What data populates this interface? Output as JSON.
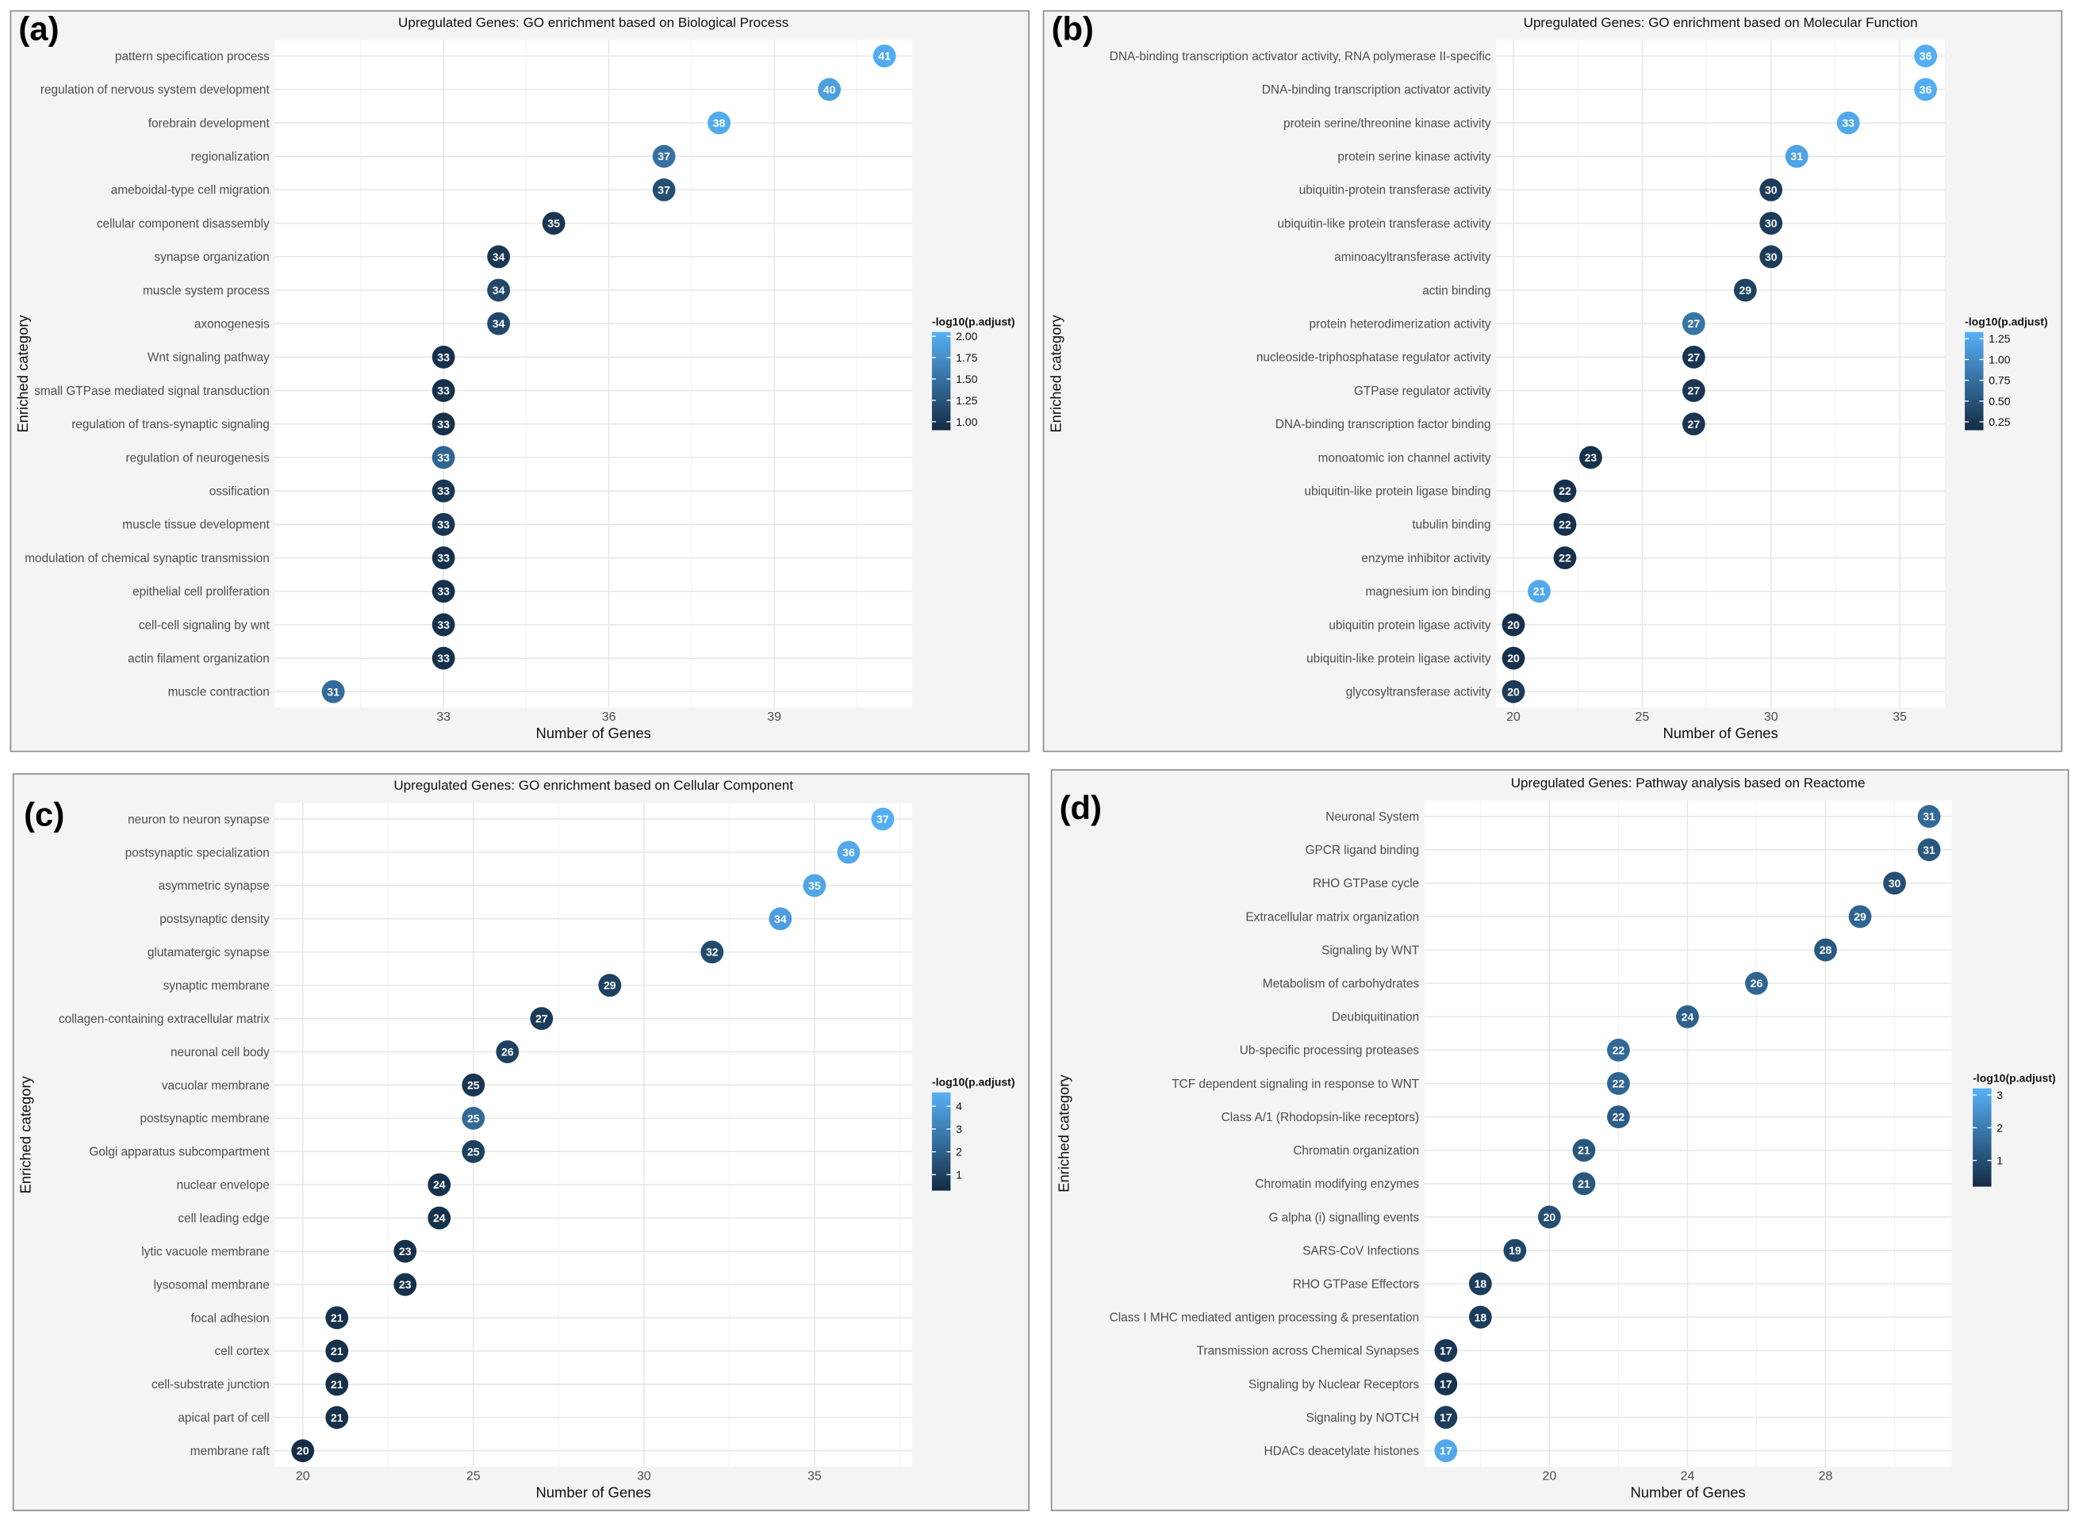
{
  "colors": {
    "low": "#132B43",
    "high": "#56B1F7",
    "grid": "#e6e6e6",
    "panel_bg": "#f4f4f4",
    "border": "#8c8c8c"
  },
  "chart_data": [
    {
      "type": "scatter",
      "panel_label": "(a)",
      "title": "Upregulated Genes: GO enrichment based on Biological Process",
      "xlabel": "Number of Genes",
      "ylabel": "Enriched category",
      "xlim": [
        29.94,
        41.5
      ],
      "xticks": [
        33,
        36,
        39
      ],
      "grid": true,
      "legend": {
        "title": "-log10(p.adjust)",
        "placement": "right",
        "range": [
          0.9,
          2.05
        ],
        "ticks": [
          "1.00",
          "1.25",
          "1.50",
          "1.75",
          "2.00"
        ]
      },
      "categories": [
        "pattern specification process",
        "regulation of nervous system development",
        "forebrain development",
        "regionalization",
        "ameboidal-type cell migration",
        "cellular component disassembly",
        "synapse organization",
        "muscle system process",
        "axonogenesis",
        "Wnt signaling pathway",
        "small GTPase mediated signal transduction",
        "regulation of trans-synaptic signaling",
        "regulation of neurogenesis",
        "ossification",
        "muscle tissue development",
        "modulation of chemical synaptic transmission",
        "epithelial cell proliferation",
        "cell-cell signaling by wnt",
        "actin filament organization",
        "muscle contraction"
      ],
      "values": [
        41,
        40,
        38,
        37,
        37,
        35,
        34,
        34,
        34,
        33,
        33,
        33,
        33,
        33,
        33,
        33,
        33,
        33,
        33,
        31
      ],
      "color_values": [
        2.0,
        1.9,
        2.0,
        1.5,
        1.2,
        1.0,
        1.0,
        1.15,
        1.15,
        0.95,
        0.95,
        0.95,
        1.4,
        1.0,
        1.0,
        0.95,
        0.95,
        0.95,
        0.95,
        1.45
      ]
    },
    {
      "type": "scatter",
      "panel_label": "(b)",
      "title": "Upregulated Genes: GO enrichment based on Molecular Function",
      "xlabel": "Number of Genes",
      "ylabel": "Enriched category",
      "xlim": [
        19.33,
        36.75
      ],
      "xticks": [
        20,
        25,
        30,
        35
      ],
      "grid": true,
      "legend": {
        "title": "-log10(p.adjust)",
        "placement": "right",
        "range": [
          0.15,
          1.33
        ],
        "ticks": [
          "0.25",
          "0.50",
          "0.75",
          "1.00",
          "1.25"
        ]
      },
      "categories": [
        "DNA-binding transcription activator activity, RNA polymerase II-specific",
        "DNA-binding transcription activator activity",
        "protein serine/threonine kinase activity",
        "protein serine kinase activity",
        "ubiquitin-protein transferase activity",
        "ubiquitin-like protein transferase activity",
        "aminoacyltransferase activity",
        "actin binding",
        "protein heterodimerization activity",
        "nucleoside-triphosphatase regulator activity",
        "GTPase regulator activity",
        "DNA-binding transcription factor binding",
        "monoatomic ion channel activity",
        "ubiquitin-like protein ligase binding",
        "tubulin binding",
        "enzyme inhibitor activity",
        "magnesium ion binding",
        "ubiquitin protein ligase activity",
        "ubiquitin-like protein ligase activity",
        "glycosyltransferase activity"
      ],
      "values": [
        36,
        36,
        33,
        31,
        30,
        30,
        30,
        29,
        27,
        27,
        27,
        27,
        23,
        22,
        22,
        22,
        21,
        20,
        20,
        20
      ],
      "color_values": [
        1.3,
        1.3,
        1.25,
        1.2,
        0.3,
        0.3,
        0.3,
        0.35,
        0.8,
        0.25,
        0.25,
        0.25,
        0.2,
        0.2,
        0.2,
        0.2,
        1.25,
        0.2,
        0.2,
        0.3
      ]
    },
    {
      "type": "scatter",
      "panel_label": "(c)",
      "title": "Upregulated Genes: GO enrichment based on Cellular Component",
      "xlabel": "Number of Genes",
      "ylabel": "Enriched category",
      "xlim": [
        19.18,
        37.86
      ],
      "xticks": [
        20,
        25,
        30,
        35
      ],
      "grid": true,
      "legend": {
        "title": "-log10(p.adjust)",
        "placement": "right",
        "range": [
          0.3,
          4.6
        ],
        "ticks": [
          "1",
          "2",
          "3",
          "4"
        ]
      },
      "categories": [
        "neuron to neuron synapse",
        "postsynaptic specialization",
        "asymmetric synapse",
        "postsynaptic density",
        "glutamatergic synapse",
        "synaptic membrane",
        "collagen-containing extracellular matrix",
        "neuronal cell body",
        "vacuolar membrane",
        "postsynaptic membrane",
        "Golgi apparatus subcompartment",
        "nuclear envelope",
        "cell leading edge",
        "lytic vacuole membrane",
        "lysosomal membrane",
        "focal adhesion",
        "cell cortex",
        "cell-substrate junction",
        "apical part of cell",
        "membrane raft"
      ],
      "values": [
        37,
        36,
        35,
        34,
        32,
        29,
        27,
        26,
        25,
        25,
        25,
        24,
        24,
        23,
        23,
        21,
        21,
        21,
        21,
        20
      ],
      "color_values": [
        4.5,
        4.3,
        4.2,
        4.0,
        1.3,
        1.0,
        0.8,
        1.0,
        0.6,
        2.3,
        1.0,
        0.5,
        0.5,
        0.5,
        0.5,
        0.5,
        0.5,
        0.5,
        0.5,
        0.4
      ]
    },
    {
      "type": "scatter",
      "panel_label": "(d)",
      "title": "Upregulated Genes: Pathway analysis based on Reactome",
      "xlabel": "Number of Genes",
      "ylabel": "Enriched category",
      "xlim": [
        16.38,
        31.65
      ],
      "xticks": [
        20,
        24,
        28
      ],
      "grid": true,
      "legend": {
        "title": "-log10(p.adjust)",
        "placement": "right",
        "range": [
          0.2,
          3.2
        ],
        "ticks": [
          "1",
          "2",
          "3"
        ]
      },
      "categories": [
        "Neuronal System",
        "GPCR ligand binding",
        "RHO GTPase cycle",
        "Extracellular matrix organization",
        "Signaling by WNT",
        "Metabolism of carbohydrates",
        "Deubiquitination",
        "Ub-specific processing proteases",
        "TCF dependent signaling in response to WNT",
        "Class A/1 (Rhodopsin-like receptors)",
        "Chromatin organization",
        "Chromatin modifying enzymes",
        "G alpha (i) signalling events",
        "SARS-CoV Infections",
        "RHO GTPase Effectors",
        "Class I MHC mediated antigen processing & presentation",
        "Transmission across Chemical Synapses",
        "Signaling by Nuclear Receptors",
        "Signaling by NOTCH",
        "HDACs deacetylate histones"
      ],
      "values": [
        31,
        31,
        30,
        29,
        28,
        26,
        24,
        22,
        22,
        22,
        21,
        21,
        20,
        19,
        18,
        18,
        17,
        17,
        17,
        17
      ],
      "color_values": [
        1.6,
        1.2,
        1.0,
        1.5,
        1.2,
        1.5,
        1.4,
        1.6,
        1.5,
        1.3,
        1.2,
        1.2,
        1.0,
        0.8,
        0.6,
        0.6,
        0.5,
        0.4,
        0.6,
        3.0
      ]
    }
  ]
}
